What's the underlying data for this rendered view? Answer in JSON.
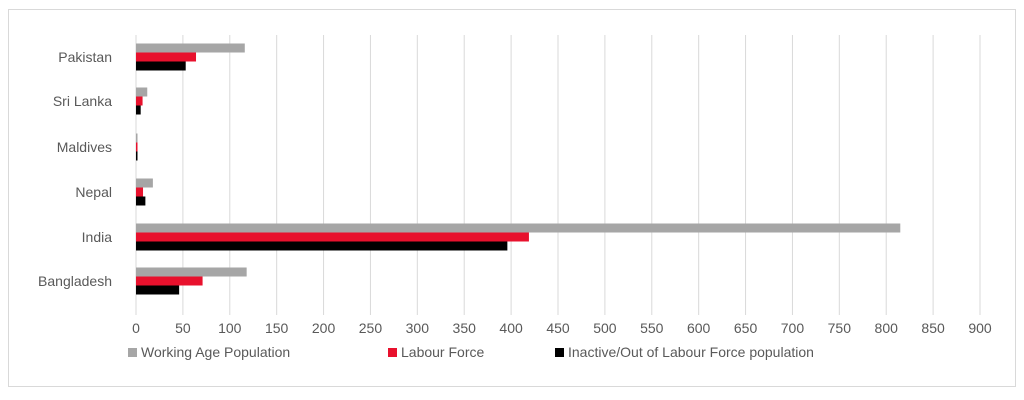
{
  "chart_data": {
    "type": "bar",
    "orientation": "horizontal",
    "title": "",
    "xlabel": "",
    "ylabel": "",
    "categories": [
      "Pakistan",
      "Sri Lanka",
      "Maldives",
      "Nepal",
      "India",
      "Bangladesh"
    ],
    "series": [
      {
        "name": "Working Age Population",
        "color": "#a6a6a6",
        "values": [
          116,
          12,
          1,
          18,
          815,
          118
        ]
      },
      {
        "name": "Labour Force",
        "color": "#e8112d",
        "values": [
          64,
          7,
          1,
          7.5,
          419,
          71
        ]
      },
      {
        "name": "Inactive/Out of Labour Force  population",
        "color": "#000000",
        "values": [
          53,
          5,
          1,
          10,
          396,
          46
        ]
      }
    ],
    "xlim": [
      0,
      900
    ],
    "xticks": [
      "0",
      "50",
      "100",
      "150",
      "200",
      "250",
      "300",
      "350",
      "400",
      "450",
      "500",
      "550",
      "600",
      "650",
      "700",
      "750",
      "800",
      "850",
      "900"
    ],
    "grid": true,
    "legend_position": "bottom"
  }
}
